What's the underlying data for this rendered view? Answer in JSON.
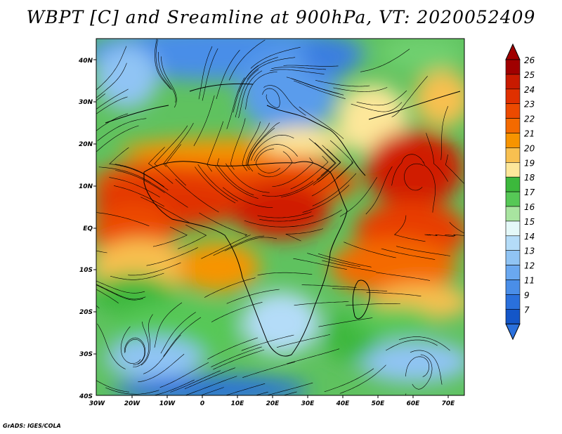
{
  "title": "WBPT [C] and Sreamline at 900hPa, VT: 2020052409",
  "credit": "GrADS: IGES/COLA",
  "lat_labels": [
    "40N",
    "30N",
    "20N",
    "10N",
    "EQ",
    "10S",
    "20S",
    "30S",
    "40S"
  ],
  "lon_labels": [
    "30W",
    "20W",
    "10W",
    "0",
    "10E",
    "20E",
    "30E",
    "40E",
    "50E",
    "60E",
    "70E"
  ],
  "colorbar": {
    "levels": [
      "26",
      "25",
      "24",
      "23",
      "22",
      "21",
      "20",
      "19",
      "18",
      "17",
      "16",
      "15",
      "14",
      "13",
      "12",
      "11",
      "9",
      "7"
    ],
    "colors": [
      "#a00000",
      "#c81a00",
      "#e03000",
      "#ec4a00",
      "#f46a00",
      "#f79400",
      "#f8c050",
      "#fde79a",
      "#3cb83c",
      "#56c856",
      "#a8e4a0",
      "#e4f8f8",
      "#b4dcf8",
      "#90c4f4",
      "#6aa8f0",
      "#4a8ee8",
      "#2a70dc",
      "#1456c8"
    ],
    "top_arrow_color": "#a00000",
    "bottom_arrow_color": "#2a70dc"
  }
}
